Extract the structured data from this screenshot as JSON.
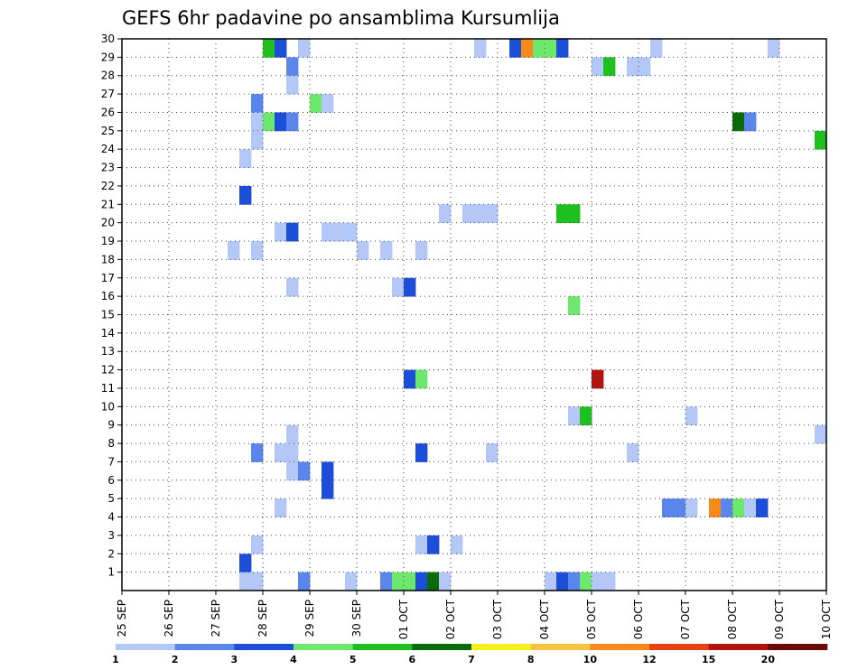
{
  "chart_data": {
    "type": "heatmap",
    "title": "GEFS 6hr padavine po ansamblima Kursumlija",
    "xlabel": "",
    "ylabel": "",
    "x_ticks": [
      "25 SEP",
      "26 SEP",
      "27 SEP",
      "28 SEP",
      "29 SEP",
      "30 SEP",
      "01 OCT",
      "02 OCT",
      "03 OCT",
      "04 OCT",
      "05 OCT",
      "06 OCT",
      "07 OCT",
      "08 OCT",
      "09 OCT",
      "10 OCT"
    ],
    "y_ticks": [
      1,
      2,
      3,
      4,
      5,
      6,
      7,
      8,
      9,
      10,
      11,
      12,
      13,
      14,
      15,
      16,
      17,
      18,
      19,
      20,
      21,
      22,
      23,
      24,
      25,
      26,
      27,
      28,
      29,
      30
    ],
    "xlim_days": [
      0,
      15
    ],
    "steps_per_day": 4,
    "ylim": [
      0,
      30
    ],
    "grid": true,
    "colorbar": {
      "labels": [
        "1",
        "2",
        "3",
        "4",
        "5",
        "6",
        "7",
        "8",
        "10",
        "12",
        "15",
        "20"
      ],
      "colors": [
        "#b3c8f7",
        "#5a86ec",
        "#1d4ed8",
        "#6de86d",
        "#1fbf1f",
        "#0b6b0b",
        "#f5ef1a",
        "#f7c23f",
        "#f58a1a",
        "#e5420f",
        "#b0140e",
        "#6a0a0a"
      ]
    },
    "cells": [
      {
        "step": 12,
        "member": 30,
        "value": 5
      },
      {
        "step": 13,
        "member": 30,
        "value": 3
      },
      {
        "step": 15,
        "member": 30,
        "value": 1
      },
      {
        "step": 30,
        "member": 30,
        "value": 1
      },
      {
        "step": 33,
        "member": 30,
        "value": 3
      },
      {
        "step": 34,
        "member": 30,
        "value": 10
      },
      {
        "step": 35,
        "member": 30,
        "value": 4
      },
      {
        "step": 36,
        "member": 30,
        "value": 4
      },
      {
        "step": 37,
        "member": 30,
        "value": 3
      },
      {
        "step": 45,
        "member": 30,
        "value": 1
      },
      {
        "step": 55,
        "member": 30,
        "value": 1
      },
      {
        "step": 14,
        "member": 29,
        "value": 2
      },
      {
        "step": 40,
        "member": 29,
        "value": 1
      },
      {
        "step": 41,
        "member": 29,
        "value": 5
      },
      {
        "step": 43,
        "member": 29,
        "value": 1
      },
      {
        "step": 44,
        "member": 29,
        "value": 1
      },
      {
        "step": 14,
        "member": 28,
        "value": 1
      },
      {
        "step": 11,
        "member": 27,
        "value": 2
      },
      {
        "step": 16,
        "member": 27,
        "value": 4
      },
      {
        "step": 17,
        "member": 27,
        "value": 1
      },
      {
        "step": 11,
        "member": 26,
        "value": 1
      },
      {
        "step": 12,
        "member": 26,
        "value": 4
      },
      {
        "step": 13,
        "member": 26,
        "value": 3
      },
      {
        "step": 14,
        "member": 26,
        "value": 2
      },
      {
        "step": 52,
        "member": 26,
        "value": 6
      },
      {
        "step": 53,
        "member": 26,
        "value": 2
      },
      {
        "step": 11,
        "member": 25,
        "value": 1
      },
      {
        "step": 59,
        "member": 25,
        "value": 5
      },
      {
        "step": 10,
        "member": 24,
        "value": 1
      },
      {
        "step": 10,
        "member": 22,
        "value": 3
      },
      {
        "step": 27,
        "member": 21,
        "value": 1
      },
      {
        "step": 29,
        "member": 21,
        "value": 1
      },
      {
        "step": 30,
        "member": 21,
        "value": 1
      },
      {
        "step": 31,
        "member": 21,
        "value": 1
      },
      {
        "step": 37,
        "member": 21,
        "value": 5
      },
      {
        "step": 38,
        "member": 21,
        "value": 5
      },
      {
        "step": 13,
        "member": 20,
        "value": 1
      },
      {
        "step": 14,
        "member": 20,
        "value": 3
      },
      {
        "step": 17,
        "member": 20,
        "value": 1
      },
      {
        "step": 18,
        "member": 20,
        "value": 1
      },
      {
        "step": 19,
        "member": 20,
        "value": 1
      },
      {
        "step": 9,
        "member": 19,
        "value": 1
      },
      {
        "step": 11,
        "member": 19,
        "value": 1
      },
      {
        "step": 20,
        "member": 19,
        "value": 1
      },
      {
        "step": 22,
        "member": 19,
        "value": 1
      },
      {
        "step": 25,
        "member": 19,
        "value": 1
      },
      {
        "step": 14,
        "member": 17,
        "value": 1
      },
      {
        "step": 23,
        "member": 17,
        "value": 1
      },
      {
        "step": 24,
        "member": 17,
        "value": 3
      },
      {
        "step": 38,
        "member": 16,
        "value": 4
      },
      {
        "step": 24,
        "member": 12,
        "value": 3
      },
      {
        "step": 25,
        "member": 12,
        "value": 4
      },
      {
        "step": 40,
        "member": 12,
        "value": 15
      },
      {
        "step": 38,
        "member": 10,
        "value": 1
      },
      {
        "step": 39,
        "member": 10,
        "value": 5
      },
      {
        "step": 48,
        "member": 10,
        "value": 1
      },
      {
        "step": 14,
        "member": 9,
        "value": 1
      },
      {
        "step": 59,
        "member": 9,
        "value": 1
      },
      {
        "step": 11,
        "member": 8,
        "value": 2
      },
      {
        "step": 13,
        "member": 8,
        "value": 1
      },
      {
        "step": 14,
        "member": 8,
        "value": 1
      },
      {
        "step": 25,
        "member": 8,
        "value": 3
      },
      {
        "step": 31,
        "member": 8,
        "value": 1
      },
      {
        "step": 43,
        "member": 8,
        "value": 1
      },
      {
        "step": 14,
        "member": 7,
        "value": 1
      },
      {
        "step": 15,
        "member": 7,
        "value": 2
      },
      {
        "step": 17,
        "member": 7,
        "value": 3
      },
      {
        "step": 17,
        "member": 6,
        "value": 3
      },
      {
        "step": 13,
        "member": 5,
        "value": 1
      },
      {
        "step": 46,
        "member": 5,
        "value": 2
      },
      {
        "step": 47,
        "member": 5,
        "value": 2
      },
      {
        "step": 48,
        "member": 5,
        "value": 1
      },
      {
        "step": 50,
        "member": 5,
        "value": 10
      },
      {
        "step": 51,
        "member": 5,
        "value": 2
      },
      {
        "step": 52,
        "member": 5,
        "value": 4
      },
      {
        "step": 53,
        "member": 5,
        "value": 1
      },
      {
        "step": 54,
        "member": 5,
        "value": 3
      },
      {
        "step": 11,
        "member": 3,
        "value": 1
      },
      {
        "step": 25,
        "member": 3,
        "value": 1
      },
      {
        "step": 26,
        "member": 3,
        "value": 3
      },
      {
        "step": 28,
        "member": 3,
        "value": 1
      },
      {
        "step": 10,
        "member": 2,
        "value": 3
      },
      {
        "step": 10,
        "member": 1,
        "value": 1
      },
      {
        "step": 11,
        "member": 1,
        "value": 1
      },
      {
        "step": 15,
        "member": 1,
        "value": 2
      },
      {
        "step": 19,
        "member": 1,
        "value": 1
      },
      {
        "step": 22,
        "member": 1,
        "value": 2
      },
      {
        "step": 23,
        "member": 1,
        "value": 4
      },
      {
        "step": 24,
        "member": 1,
        "value": 4
      },
      {
        "step": 25,
        "member": 1,
        "value": 3
      },
      {
        "step": 26,
        "member": 1,
        "value": 6
      },
      {
        "step": 27,
        "member": 1,
        "value": 1
      },
      {
        "step": 36,
        "member": 1,
        "value": 1
      },
      {
        "step": 37,
        "member": 1,
        "value": 3
      },
      {
        "step": 38,
        "member": 1,
        "value": 2
      },
      {
        "step": 39,
        "member": 1,
        "value": 4
      },
      {
        "step": 40,
        "member": 1,
        "value": 1
      },
      {
        "step": 41,
        "member": 1,
        "value": 1
      }
    ]
  }
}
